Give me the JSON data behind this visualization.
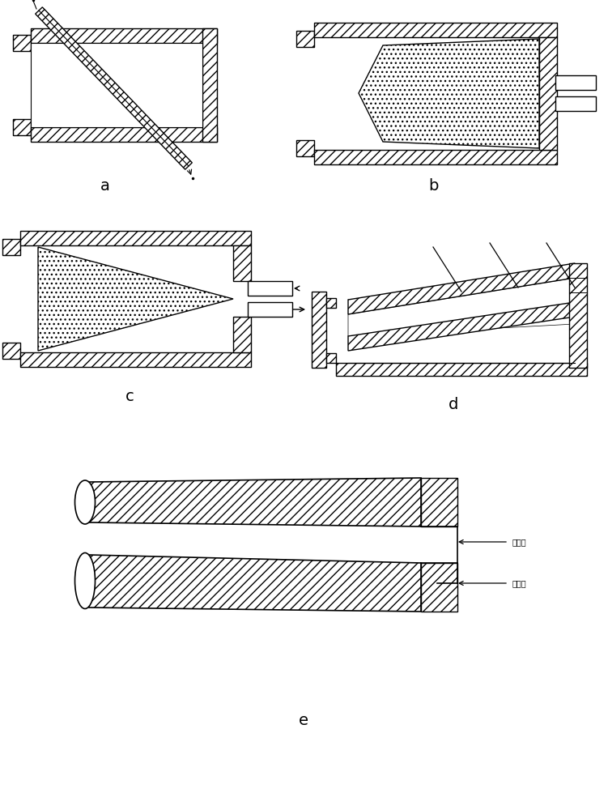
{
  "background": "#ffffff",
  "label_a": "a",
  "label_b": "b",
  "label_c": "c",
  "label_d": "d",
  "label_e": "e",
  "label_fontsize": 14,
  "annotation_fontsize": 7,
  "text_chuishuikou": "出水口",
  "text_rushuikou": "入水口"
}
